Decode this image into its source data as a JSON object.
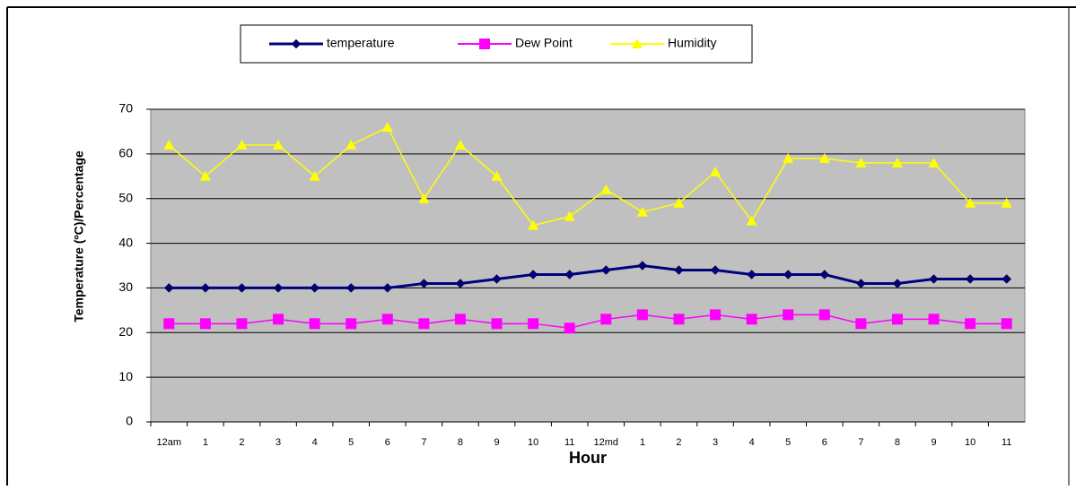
{
  "chart_data": {
    "type": "line",
    "x_label": "Hour",
    "y_label": "Temperature (ºC)/Percentage",
    "categories": [
      "12am",
      "1",
      "2",
      "3",
      "4",
      "5",
      "6",
      "7",
      "8",
      "9",
      "10",
      "11",
      "12md",
      "1",
      "2",
      "3",
      "4",
      "5",
      "6",
      "7",
      "8",
      "9",
      "10",
      "11"
    ],
    "series": [
      {
        "name": "temperature",
        "color": "#000080",
        "marker": "diamond",
        "values": [
          30,
          30,
          30,
          30,
          30,
          30,
          30,
          31,
          31,
          32,
          33,
          33,
          34,
          35,
          34,
          34,
          33,
          33,
          33,
          31,
          31,
          32,
          32,
          32
        ]
      },
      {
        "name": "Dew Point",
        "color": "#ff00ff",
        "marker": "square",
        "values": [
          22,
          22,
          22,
          23,
          22,
          22,
          23,
          22,
          23,
          22,
          22,
          21,
          23,
          24,
          23,
          24,
          23,
          24,
          24,
          22,
          23,
          23,
          22,
          22
        ]
      },
      {
        "name": "Humidity",
        "color": "#ffff00",
        "marker": "triangle",
        "values": [
          62,
          55,
          62,
          62,
          55,
          62,
          66,
          50,
          62,
          55,
          44,
          46,
          52,
          47,
          49,
          56,
          45,
          59,
          59,
          58,
          58,
          58,
          49,
          49
        ]
      }
    ],
    "ylim": [
      0,
      70
    ],
    "yticks": [
      0,
      10,
      20,
      30,
      40,
      50,
      60,
      70
    ],
    "grid": true,
    "plot_background": "#c0c0c0"
  }
}
